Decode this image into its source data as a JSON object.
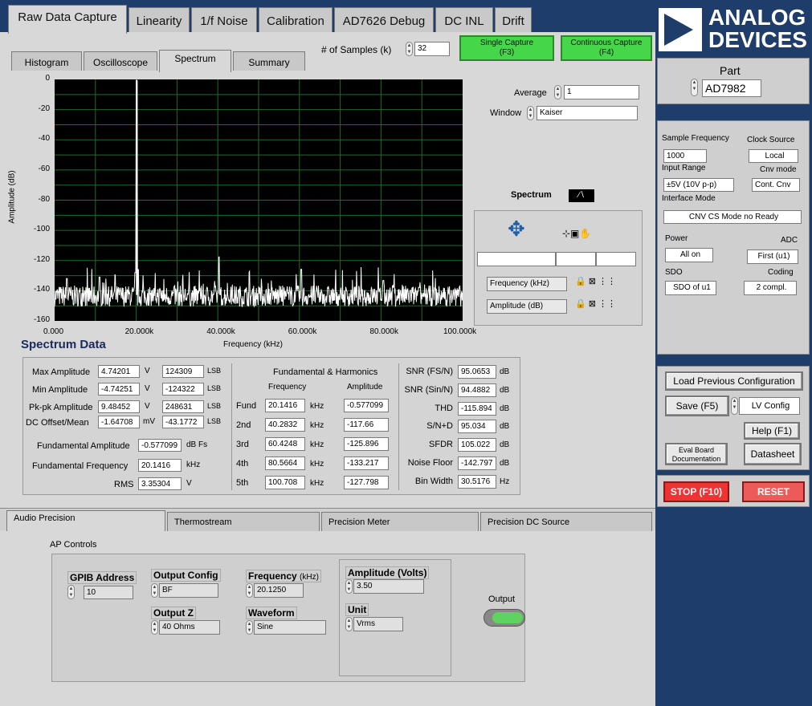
{
  "main_tabs": [
    "Raw Data Capture",
    "Linearity",
    "1/f Noise",
    "Calibration",
    "AD7626 Debug",
    "DC INL",
    "Drift"
  ],
  "sub_tabs": [
    "Histogram",
    "Oscilloscope",
    "Spectrum",
    "Summary"
  ],
  "samples": {
    "label": "# of Samples (k)",
    "value": "32"
  },
  "single_capture": {
    "line1": "Single Capture",
    "line2": "(F3)"
  },
  "continuous_capture": {
    "line1": "Continuous Capture",
    "line2": "(F4)"
  },
  "brand": {
    "line1": "ANALOG",
    "line2": "DEVICES"
  },
  "part": {
    "label": "Part",
    "value": "AD7982"
  },
  "config": {
    "sample_frequency_label": "Sample Frequency",
    "sample_frequency": "1000",
    "clock_source_label": "Clock Source",
    "clock_source": "Local",
    "input_range_label": "Input Range",
    "input_range": "±5V (10V p-p)",
    "cnv_mode_label": "Cnv mode",
    "cnv_mode": "Cont. Cnv",
    "interface_mode_label": "Interface Mode",
    "interface_mode": "CNV CS Mode no Ready",
    "power_label": "Power",
    "power": "All on",
    "adc_label": "ADC",
    "adc": "First (u1)",
    "sdo_label": "SDO",
    "sdo": "SDO of u1",
    "coding_label": "Coding",
    "coding": "2 compl."
  },
  "right_buttons": {
    "load": "Load Previous Configuration",
    "save": "Save (F5)",
    "lv_config": "LV Config",
    "help": "Help (F1)",
    "eval_line1": "Eval Board",
    "eval_line2": "Documentation",
    "datasheet": "Datasheet",
    "stop": "STOP (F10)",
    "reset": "RESET"
  },
  "chart_controls": {
    "average_label": "Average",
    "average": "1",
    "window_label": "Window",
    "window": "Kaiser",
    "legend_label": "Spectrum",
    "freq_axis": "Frequency (kHz)",
    "amp_axis": "Amplitude (dB)"
  },
  "chart_data": {
    "type": "line",
    "xlabel": "Frequency (kHz)",
    "ylabel": "Amplitude (dB)",
    "xlim": [
      0,
      100000
    ],
    "ylim": [
      -160,
      0
    ],
    "x_ticks": [
      "0.000",
      "20.000k",
      "40.000k",
      "60.000k",
      "80.000k",
      "100.000k"
    ],
    "y_ticks": [
      "0",
      "-20",
      "-40",
      "-60",
      "-80",
      "-100",
      "-120",
      "-140",
      "-160"
    ],
    "grid": true,
    "noise_floor_db": -142.797,
    "fundamental": {
      "x": 20141.6,
      "y": -0.577
    },
    "peaks": [
      {
        "x": 20141.6,
        "y": -0.577
      },
      {
        "x": 19800,
        "y": -128
      },
      {
        "x": 20500,
        "y": -126
      },
      {
        "x": 40283.2,
        "y": -117.66
      },
      {
        "x": 60424.8,
        "y": -125.896
      },
      {
        "x": 80566.4,
        "y": -133.217
      },
      {
        "x": 3000,
        "y": -132
      },
      {
        "x": 11000,
        "y": -131
      }
    ]
  },
  "spectrum_data": {
    "title": "Spectrum Data",
    "max_amp_label": "Max Amplitude",
    "max_amp": "4.74201",
    "max_amp_lsb": "124309",
    "min_amp_label": "Min Amplitude",
    "min_amp": "-4.74251",
    "min_amp_lsb": "-124322",
    "pkpk_label": "Pk-pk Amplitude",
    "pkpk": "9.48452",
    "pkpk_lsb": "248631",
    "dc_label": "DC Offset/Mean",
    "dc": "-1.64708",
    "dc_lsb": "-43.1772",
    "unit_v": "V",
    "unit_mv": "mV",
    "unit_lsb": "LSB",
    "fund_amp_label": "Fundamental Amplitude",
    "fund_amp": "-0.577099",
    "fund_amp_unit": "dB Fs",
    "fund_freq_label": "Fundamental Frequency",
    "fund_freq": "20.1416",
    "unit_khz": "kHz",
    "rms_label": "RMS",
    "rms": "3.35304",
    "harmonics_title": "Fundamental & Harmonics",
    "freq_header": "Frequency",
    "amp_header": "Amplitude",
    "harmonics": [
      {
        "label": "Fund",
        "freq": "20.1416",
        "amp": "-0.577099"
      },
      {
        "label": "2nd",
        "freq": "40.2832",
        "amp": "-117.66"
      },
      {
        "label": "3rd",
        "freq": "60.4248",
        "amp": "-125.896"
      },
      {
        "label": "4th",
        "freq": "80.5664",
        "amp": "-133.217"
      },
      {
        "label": "5th",
        "freq": "100.708",
        "amp": "-127.798"
      }
    ],
    "metrics": [
      {
        "label": "SNR (FS/N)",
        "value": "95.0653",
        "unit": "dB"
      },
      {
        "label": "SNR (Sin/N)",
        "value": "94.4882",
        "unit": "dB"
      },
      {
        "label": "THD",
        "value": "-115.894",
        "unit": "dB"
      },
      {
        "label": "S/N+D",
        "value": "95.034",
        "unit": "dB"
      },
      {
        "label": "SFDR",
        "value": "105.022",
        "unit": "dB"
      },
      {
        "label": "Noise Floor",
        "value": "-142.797",
        "unit": "dB"
      },
      {
        "label": "Bin Width",
        "value": "30.5176",
        "unit": "Hz"
      }
    ]
  },
  "bottom_tabs": [
    "Audio Precision",
    "Thermostream",
    "Precision Meter",
    "Precision DC Source"
  ],
  "ap": {
    "title": "AP Controls",
    "gpib_label": "GPIB Address",
    "gpib": "10",
    "output_config_label": "Output Config",
    "output_config": "BF",
    "frequency_label": "Frequency",
    "frequency_unit": "(kHz)",
    "frequency": "20.1250",
    "amplitude_label": "Amplitude (Volts)",
    "amplitude": "3.50",
    "output_z_label": "Output Z",
    "output_z": "40 Ohms",
    "waveform_label": "Waveform",
    "waveform": "Sine",
    "unit_label": "Unit",
    "unit": "Vrms",
    "output_label": "Output"
  },
  "colors": {
    "plot_bg": "#000000",
    "trace": "#ffffff",
    "grid": "#1f6b2a",
    "brand_blue": "#1f3d6b",
    "green_button": "#46d64a",
    "red_button": "#ee3333"
  }
}
